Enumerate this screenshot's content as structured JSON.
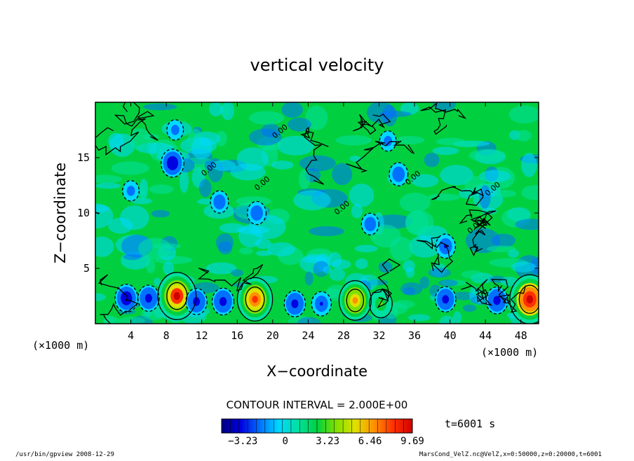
{
  "chart_data": {
    "type": "heatmap",
    "title": "vertical velocity",
    "xlabel": "X−coordinate",
    "ylabel": "Z−coordinate",
    "x_unit_left": "(×1000 m)",
    "x_unit_right": "(×1000 m)",
    "xlim": [
      0,
      50
    ],
    "ylim": [
      0,
      20
    ],
    "x_ticks": [
      4,
      8,
      12,
      16,
      20,
      24,
      28,
      32,
      36,
      40,
      44,
      48
    ],
    "y_ticks": [
      5,
      10,
      15
    ],
    "contour_interval_label": "CONTOUR INTERVAL = 2.000E+00",
    "contour_line_label": "0.00",
    "time_label": "t=6001  s",
    "colorbar": {
      "min": -4.85,
      "max": 9.69,
      "tick_values": [
        -3.23,
        0,
        3.23,
        6.46,
        9.69
      ],
      "tick_labels": [
        "−3.23",
        "0",
        "3.23",
        "6.46",
        "9.69"
      ],
      "colors": [
        "#000080",
        "#0000e0",
        "#0070ff",
        "#00d8ff",
        "#00e0a0",
        "#00d040",
        "#80e000",
        "#e0e000",
        "#ff9000",
        "#ff3000",
        "#d00000"
      ]
    },
    "features": [
      {
        "x": 3.5,
        "z": 2.3,
        "value": -3.5
      },
      {
        "x": 6.0,
        "z": 2.3,
        "value": -3.0
      },
      {
        "x": 9.2,
        "z": 2.5,
        "value": 8.5
      },
      {
        "x": 11.4,
        "z": 2.0,
        "value": -3.0
      },
      {
        "x": 14.4,
        "z": 2.0,
        "value": -3.2
      },
      {
        "x": 18.0,
        "z": 2.2,
        "value": 7.5
      },
      {
        "x": 22.5,
        "z": 1.8,
        "value": -3.0
      },
      {
        "x": 25.5,
        "z": 1.8,
        "value": -2.5
      },
      {
        "x": 29.3,
        "z": 2.1,
        "value": 6.5
      },
      {
        "x": 32.2,
        "z": 1.8,
        "value": 3.5
      },
      {
        "x": 39.5,
        "z": 2.2,
        "value": -2.8
      },
      {
        "x": 45.3,
        "z": 2.1,
        "value": -3.2
      },
      {
        "x": 49.0,
        "z": 2.2,
        "value": 9.0
      },
      {
        "x": 8.7,
        "z": 14.5,
        "value": -3.5
      },
      {
        "x": 14.0,
        "z": 11.0,
        "value": -2.0
      },
      {
        "x": 18.2,
        "z": 10.0,
        "value": -2.2
      },
      {
        "x": 31.0,
        "z": 9.0,
        "value": -1.8
      },
      {
        "x": 34.2,
        "z": 13.5,
        "value": -2.2
      },
      {
        "x": 33.0,
        "z": 16.5,
        "value": -1.5
      },
      {
        "x": 39.5,
        "z": 7.0,
        "value": -2.5
      },
      {
        "x": 9.0,
        "z": 17.5,
        "value": -1.5
      },
      {
        "x": 4.0,
        "z": 12.0,
        "value": -1.5
      }
    ]
  },
  "footer": {
    "left": "/usr/bin/gpview   2008-12-29",
    "right": "MarsCond_VelZ.nc@VelZ,x=0:50000,z=0:20000,t=6001"
  }
}
